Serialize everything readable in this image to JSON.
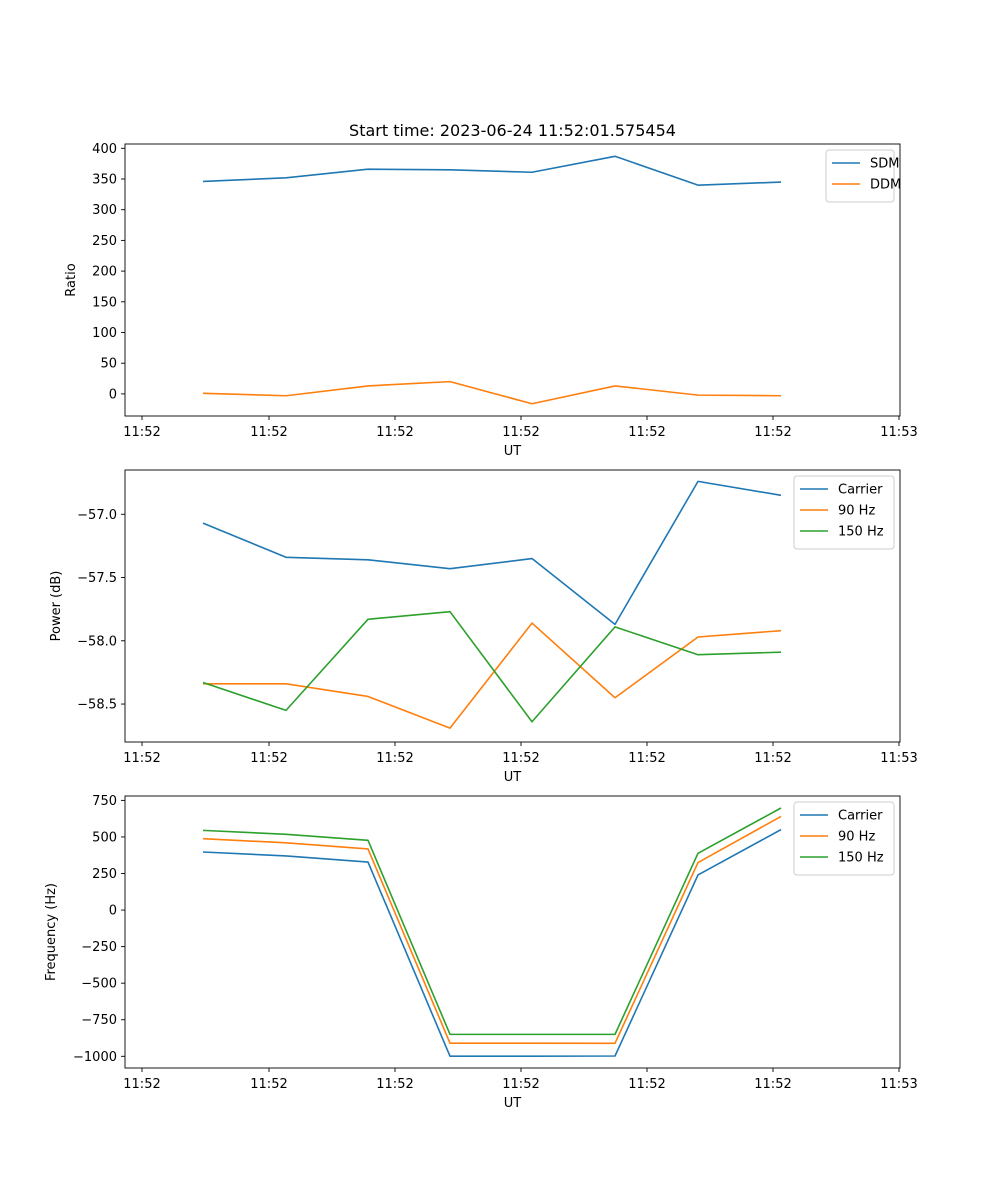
{
  "title": "Start time: 2023-06-24 11:52:01.575454",
  "chart_data": [
    {
      "type": "line",
      "xlabel": "UT",
      "ylabel": "Ratio",
      "x_tick_labels": [
        "11:52",
        "11:52",
        "11:52",
        "11:52",
        "11:52",
        "11:52",
        "11:52"
      ],
      "x_last_tick_label": "11:53",
      "y_ticks": [
        0,
        50,
        100,
        150,
        200,
        250,
        300,
        350,
        400
      ],
      "ylim": [
        -36,
        407
      ],
      "legend": "top-right",
      "series": [
        {
          "name": "SDM",
          "color": "#1f77b4",
          "values": [
            346,
            352,
            366,
            365,
            361,
            387,
            340,
            345
          ]
        },
        {
          "name": "DDM",
          "color": "#ff7f0e",
          "values": [
            1,
            -3,
            13,
            20,
            -16,
            13,
            -2,
            -3
          ]
        }
      ]
    },
    {
      "type": "line",
      "xlabel": "UT",
      "ylabel": "Power (dB)",
      "x_tick_labels": [
        "11:52",
        "11:52",
        "11:52",
        "11:52",
        "11:52",
        "11:52",
        "11:52"
      ],
      "x_last_tick_label": "11:53",
      "y_ticks": [
        -58.5,
        -58.0,
        -57.5,
        -57.0
      ],
      "y_tick_labels": [
        "−58.5",
        "−58.0",
        "−57.5",
        "−57.0"
      ],
      "ylim": [
        -58.8,
        -56.65
      ],
      "legend": "top-right",
      "series": [
        {
          "name": "Carrier",
          "color": "#1f77b4",
          "values": [
            -57.07,
            -57.34,
            -57.36,
            -57.43,
            -57.35,
            -57.87,
            -56.74,
            -56.85
          ]
        },
        {
          "name": "90 Hz",
          "color": "#ff7f0e",
          "values": [
            -58.34,
            -58.34,
            -58.44,
            -58.69,
            -57.86,
            -58.45,
            -57.97,
            -57.92
          ]
        },
        {
          "name": "150 Hz",
          "color": "#2ca02c",
          "values": [
            -58.33,
            -58.55,
            -57.83,
            -57.77,
            -58.64,
            -57.89,
            -58.11,
            -58.09
          ]
        }
      ]
    },
    {
      "type": "line",
      "xlabel": "UT",
      "ylabel": "Frequency (Hz)",
      "x_tick_labels": [
        "11:52",
        "11:52",
        "11:52",
        "11:52",
        "11:52",
        "11:52",
        "11:52"
      ],
      "x_last_tick_label": "11:53",
      "y_ticks": [
        -1000,
        -750,
        -500,
        -250,
        0,
        250,
        500,
        750
      ],
      "y_tick_labels": [
        "−1000",
        "−750",
        "−500",
        "−250",
        "0",
        "250",
        "500",
        "750"
      ],
      "ylim": [
        -1080,
        780
      ],
      "legend": "top-right",
      "series": [
        {
          "name": "Carrier",
          "color": "#1f77b4",
          "values": [
            397,
            370,
            328,
            -999,
            -999,
            -998,
            240,
            550
          ]
        },
        {
          "name": "90 Hz",
          "color": "#ff7f0e",
          "values": [
            488,
            460,
            418,
            -910,
            -910,
            -911,
            325,
            640
          ]
        },
        {
          "name": "150 Hz",
          "color": "#2ca02c",
          "values": [
            545,
            518,
            477,
            -850,
            -850,
            -850,
            388,
            698
          ]
        }
      ]
    }
  ]
}
